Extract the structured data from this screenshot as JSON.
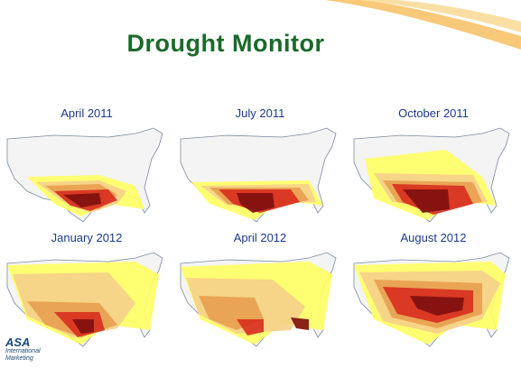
{
  "title": "Drought Monitor",
  "logo": {
    "mark": "ASA",
    "line1": "International",
    "line2": "Marketing"
  },
  "colors": {
    "title": "#1a6a2a",
    "labels": "#1a3a8a",
    "D0": "#ffff66",
    "D1": "#f5d08a",
    "D2": "#e8a050",
    "D3": "#d83020",
    "D4": "#801010"
  },
  "maps": [
    {
      "label": "April 2011"
    },
    {
      "label": "July 2011"
    },
    {
      "label": "October 2011"
    },
    {
      "label": "January  2012"
    },
    {
      "label": "April 2012"
    },
    {
      "label": "August  2012"
    }
  ]
}
